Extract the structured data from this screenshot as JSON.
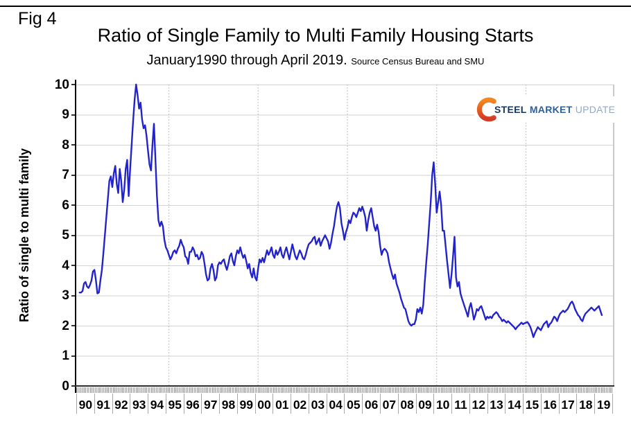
{
  "figure": {
    "fig_label": "Fig 4",
    "title": "Ratio of Single Family to Multi Family Housing Starts",
    "subtitle": "January1990 through April 2019.",
    "source_note": "Source Census Bureau and SMU"
  },
  "logo": {
    "steel": "STEEL",
    "market": "MARKET",
    "update": "UPDATE",
    "steel_color": "#16355e",
    "market_color": "#2c5f9e",
    "update_color": "#8fa9cb",
    "crescent_top_color": "#f6871f",
    "crescent_bottom_color": "#d33a27"
  },
  "y_axis": {
    "label": "Ratio of single to multi family",
    "ticks": [
      10,
      9,
      8,
      7,
      6,
      5,
      4,
      3,
      2,
      1,
      0
    ]
  },
  "x_axis": {
    "year_labels": [
      "90",
      "91",
      "92",
      "93",
      "94",
      "95",
      "96",
      "97",
      "98",
      "99",
      "00",
      "01",
      "02",
      "03",
      "04",
      "05",
      "06",
      "07",
      "08",
      "09",
      "10",
      "11",
      "12",
      "13",
      "14",
      "15",
      "16",
      "17",
      "18",
      "19"
    ]
  },
  "chart_data": {
    "type": "line",
    "title": "Ratio of Single Family to Multi Family Housing Starts",
    "subtitle": "January1990 through April 2019. Source Census Bureau and SMU",
    "ylabel": "Ratio of single to multi family",
    "ylim": [
      0,
      10
    ],
    "x_start": "1990-01",
    "x_end": "2019-04",
    "frequency": "monthly",
    "line_color": "#2323cc",
    "grid": "horizontal solid gray at each integer; dotted vertical gray at Jan 1995/2000/2005/2010/2015",
    "vertical_gridline_months": [
      60,
      120,
      180,
      240,
      300
    ],
    "series": [
      {
        "name": "Single family to multi family housing starts ratio",
        "values": [
          3.1,
          3.1,
          3.15,
          3.4,
          3.45,
          3.3,
          3.25,
          3.35,
          3.5,
          3.8,
          3.85,
          3.5,
          3.07,
          3.1,
          3.5,
          3.85,
          4.4,
          5.0,
          5.6,
          6.2,
          6.8,
          6.95,
          6.6,
          7.05,
          7.3,
          6.7,
          6.4,
          7.2,
          6.8,
          6.1,
          6.5,
          7.2,
          7.5,
          6.3,
          7.2,
          8.0,
          8.8,
          9.5,
          10.0,
          9.65,
          9.2,
          9.4,
          8.85,
          8.55,
          8.65,
          8.3,
          7.8,
          7.35,
          7.15,
          8.0,
          8.7,
          7.5,
          6.3,
          5.5,
          5.3,
          5.45,
          5.3,
          4.85,
          4.6,
          4.5,
          4.35,
          4.2,
          4.3,
          4.45,
          4.5,
          4.4,
          4.55,
          4.65,
          4.85,
          4.7,
          4.6,
          4.3,
          4.25,
          4.05,
          4.45,
          4.45,
          4.6,
          4.5,
          4.3,
          4.35,
          4.2,
          4.25,
          4.45,
          4.35,
          4.05,
          3.7,
          3.5,
          3.55,
          3.9,
          4.05,
          3.85,
          3.5,
          3.6,
          4.0,
          4.1,
          4.05,
          4.15,
          4.2,
          4.0,
          3.85,
          4.05,
          4.3,
          4.4,
          4.15,
          4.0,
          4.3,
          4.5,
          4.4,
          4.6,
          4.4,
          4.25,
          4.35,
          4.15,
          3.9,
          4.05,
          3.75,
          3.6,
          3.9,
          3.6,
          3.5,
          3.9,
          4.2,
          4.1,
          4.25,
          4.1,
          4.3,
          4.5,
          4.35,
          4.45,
          4.6,
          4.35,
          4.25,
          4.5,
          4.35,
          4.45,
          4.6,
          4.35,
          4.25,
          4.45,
          4.6,
          4.4,
          4.2,
          4.45,
          4.7,
          4.5,
          4.3,
          4.2,
          4.35,
          4.5,
          4.4,
          4.25,
          4.2,
          4.35,
          4.55,
          4.7,
          4.75,
          4.8,
          4.9,
          4.95,
          4.7,
          4.8,
          4.9,
          4.65,
          4.8,
          4.9,
          5.0,
          4.9,
          4.8,
          4.55,
          4.75,
          5.05,
          5.3,
          5.65,
          5.95,
          6.1,
          5.9,
          5.4,
          5.15,
          4.85,
          5.1,
          5.25,
          5.5,
          5.4,
          5.6,
          5.75,
          5.7,
          5.6,
          5.75,
          5.9,
          5.8,
          5.95,
          5.8,
          5.6,
          5.15,
          5.5,
          5.75,
          5.9,
          5.6,
          5.3,
          5.15,
          5.35,
          5.1,
          4.65,
          4.35,
          4.5,
          4.55,
          4.5,
          4.4,
          4.1,
          3.9,
          3.7,
          3.55,
          3.7,
          3.4,
          3.25,
          3.1,
          2.9,
          2.75,
          2.6,
          2.55,
          2.35,
          2.15,
          2.05,
          2.0,
          2.05,
          2.05,
          2.2,
          2.55,
          2.45,
          2.6,
          2.4,
          2.7,
          3.45,
          4.1,
          4.7,
          5.4,
          6.1,
          7.0,
          7.42,
          6.7,
          5.75,
          6.1,
          6.45,
          6.0,
          5.15,
          5.15,
          4.65,
          4.15,
          3.7,
          3.25,
          3.7,
          4.3,
          4.95,
          3.6,
          3.3,
          3.45,
          3.07,
          2.9,
          2.75,
          2.6,
          2.45,
          2.3,
          2.6,
          2.75,
          2.5,
          2.2,
          2.35,
          2.55,
          2.5,
          2.6,
          2.65,
          2.5,
          2.35,
          2.2,
          2.3,
          2.25,
          2.3,
          2.25,
          2.35,
          2.4,
          2.45,
          2.4,
          2.3,
          2.25,
          2.15,
          2.2,
          2.15,
          2.1,
          2.15,
          2.1,
          2.05,
          2.0,
          1.95,
          1.88,
          1.95,
          2.0,
          2.05,
          2.1,
          2.05,
          2.08,
          2.1,
          2.12,
          2.05,
          1.95,
          1.8,
          1.62,
          1.75,
          1.85,
          1.95,
          1.9,
          1.85,
          1.95,
          2.05,
          2.1,
          2.15,
          1.95,
          2.05,
          2.1,
          2.2,
          2.3,
          2.25,
          2.15,
          2.3,
          2.4,
          2.45,
          2.5,
          2.45,
          2.5,
          2.55,
          2.65,
          2.75,
          2.8,
          2.7,
          2.55,
          2.45,
          2.35,
          2.3,
          2.2,
          2.15,
          2.3,
          2.4,
          2.45,
          2.5,
          2.55,
          2.6,
          2.55,
          2.5,
          2.55,
          2.6,
          2.65,
          2.5,
          2.35
        ]
      }
    ]
  }
}
